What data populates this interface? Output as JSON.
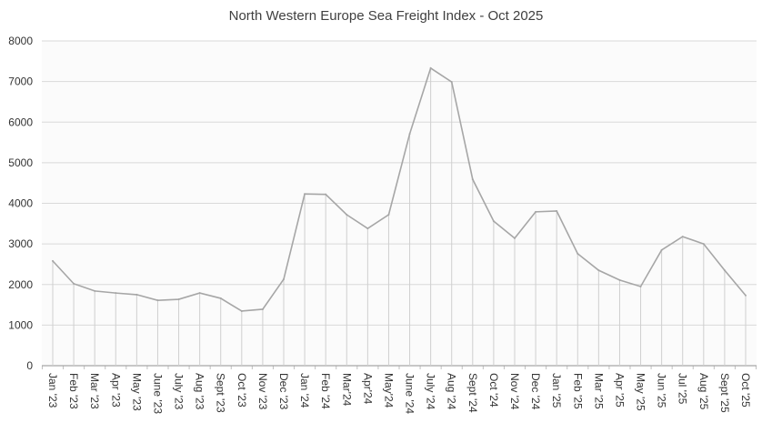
{
  "chart_data": {
    "type": "line",
    "title": "North Western Europe Sea Freight Index - Oct 2025",
    "xlabel": "",
    "ylabel": "",
    "ylim": [
      0,
      8000
    ],
    "yticks": [
      0,
      1000,
      2000,
      3000,
      4000,
      5000,
      6000,
      7000,
      8000
    ],
    "grid": true,
    "drop_lines": true,
    "line_color": "#a6a6a6",
    "categories": [
      "Jan '23",
      "Feb '23",
      "Mar '23",
      "Apr '23",
      "May '23",
      "June '23",
      "July '23",
      "Aug '23",
      "Sept '23",
      "Oct '23",
      "Nov '23",
      "Dec '23",
      "Jan '24",
      "Feb '24",
      "Mar'24",
      "Apr'24",
      "May'24",
      "June '24",
      "July '24",
      "Aug '24",
      "Sept '24",
      "Oct '24",
      "Nov '24",
      "Dec '24",
      "Jan '25",
      "Feb '25",
      "Mar '25",
      "Apr '25",
      "May '25",
      "Jun '25",
      "Jul '25",
      "Aug '25",
      "Sept '25",
      "Oct '25"
    ],
    "values": [
      2580,
      2020,
      1840,
      1790,
      1750,
      1610,
      1635,
      1790,
      1660,
      1345,
      1390,
      2130,
      4230,
      4220,
      3720,
      3380,
      3720,
      5710,
      7330,
      6990,
      4590,
      3560,
      3140,
      3790,
      3810,
      2760,
      2350,
      2110,
      1950,
      2850,
      3180,
      3000,
      2350,
      1730
    ]
  }
}
